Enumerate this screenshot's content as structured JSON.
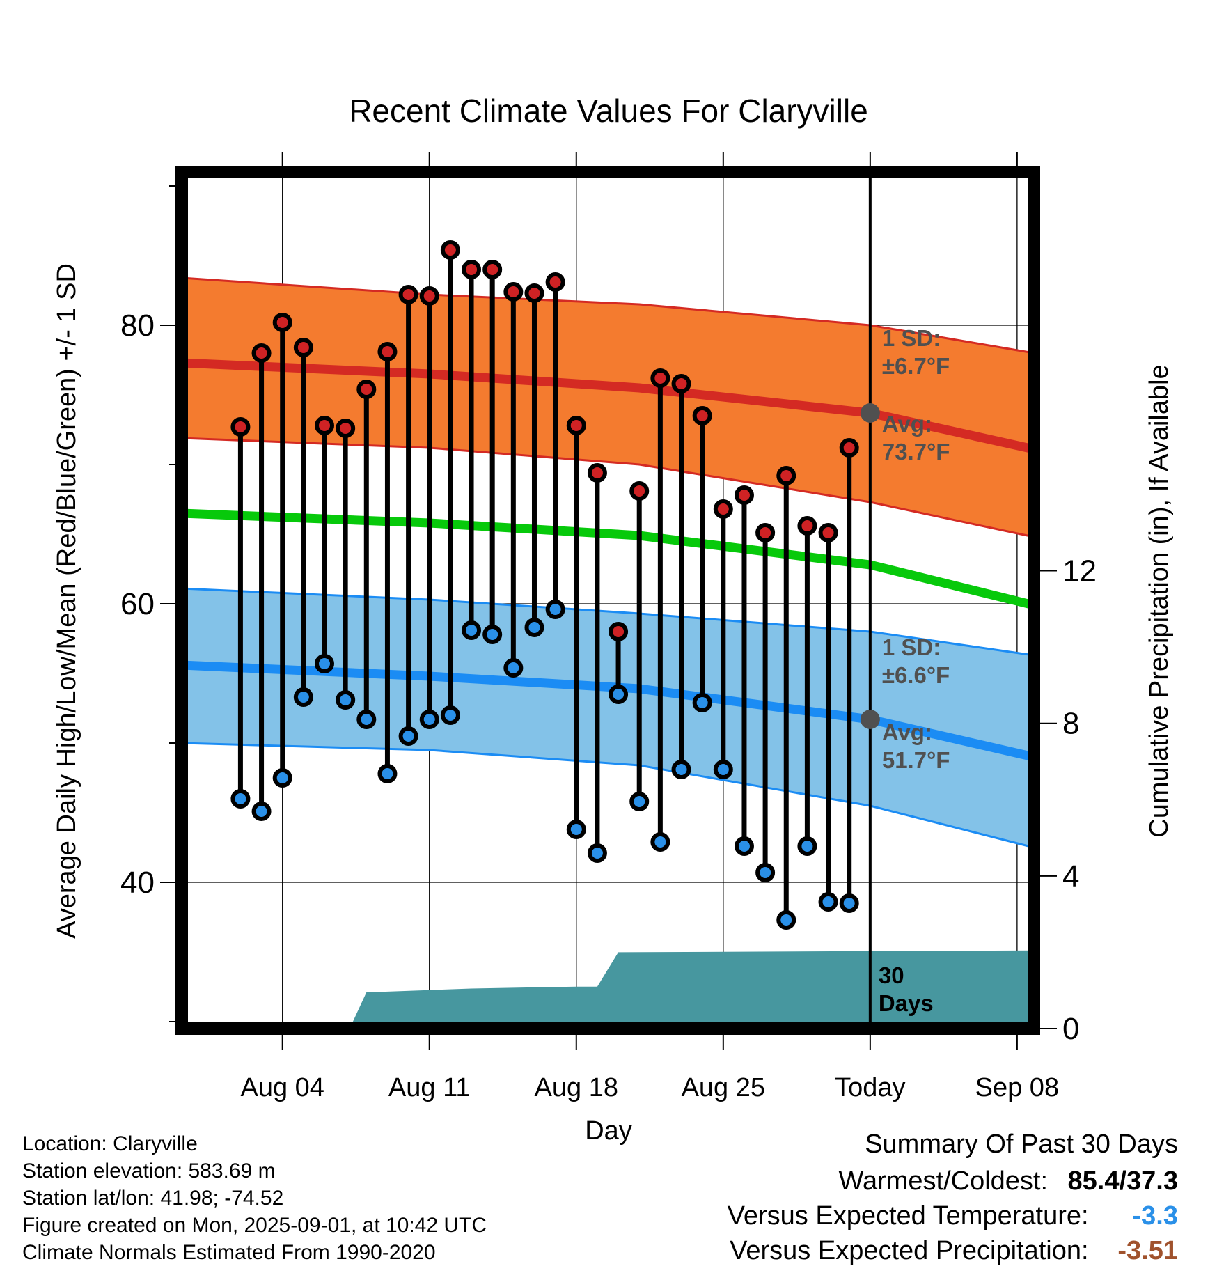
{
  "chart_data": {
    "type": "line",
    "title": "Recent Climate Values For Claryville",
    "xlabel": "Day",
    "ylabel": "Average Daily High/Low/Mean (Red/Blue/Green) +/- 1 SD",
    "y2label": "Cumulative Precipitation (in), If Available",
    "ylim": [
      29.5,
      91
    ],
    "y2lim": [
      0,
      22.45
    ],
    "xlim": [
      -1.8,
      38.8
    ],
    "x_tick_labels": [
      "Aug 04",
      "Aug 11",
      "Aug 18",
      "Aug 25",
      "Today",
      "Sep 08"
    ],
    "x_tick_positions": [
      3,
      10,
      17,
      24,
      31,
      38
    ],
    "y_ticks": [
      40,
      60,
      80
    ],
    "y2_ticks": [
      0,
      4,
      8,
      12
    ],
    "grid": true,
    "days": [
      1,
      2,
      3,
      4,
      5,
      6,
      7,
      8,
      9,
      10,
      11,
      12,
      13,
      14,
      15,
      16,
      17,
      18,
      19,
      20,
      21,
      22,
      23,
      24,
      25,
      26,
      27,
      28,
      29,
      30
    ],
    "daily_high": [
      72.7,
      78.0,
      80.2,
      78.4,
      72.8,
      72.6,
      75.4,
      78.1,
      82.2,
      82.1,
      85.4,
      84.0,
      84.0,
      82.4,
      82.3,
      83.1,
      72.8,
      69.4,
      58.0,
      68.1,
      76.2,
      75.8,
      73.5,
      66.8,
      67.8,
      65.1,
      69.2,
      65.6,
      65.1,
      71.2
    ],
    "daily_low": [
      46.0,
      45.1,
      47.5,
      53.3,
      55.7,
      53.1,
      51.7,
      47.8,
      50.5,
      51.7,
      52.0,
      58.1,
      57.8,
      55.4,
      58.3,
      59.6,
      43.8,
      42.1,
      53.5,
      45.8,
      42.9,
      48.1,
      52.9,
      48.1,
      42.6,
      40.7,
      37.3,
      42.6,
      38.6,
      38.5
    ],
    "normal_high": {
      "x": [
        -1.8,
        10,
        20,
        31,
        38.8
      ],
      "values": [
        77.3,
        76.5,
        75.5,
        73.7,
        71.1
      ]
    },
    "normal_high_sd": {
      "x": [
        -1.8,
        10,
        20,
        31,
        38.8
      ],
      "upper": [
        83.4,
        82.2,
        81.5,
        80.0,
        78.0
      ],
      "lower": [
        71.9,
        71.2,
        70.0,
        67.3,
        64.8
      ]
    },
    "normal_mean": {
      "x": [
        -1.8,
        10,
        20,
        31,
        38.8
      ],
      "values": [
        66.5,
        65.8,
        64.9,
        62.8,
        59.9
      ]
    },
    "normal_low": {
      "x": [
        -1.8,
        10,
        20,
        31,
        38.8
      ],
      "values": [
        55.6,
        54.8,
        53.9,
        51.7,
        49.0
      ]
    },
    "normal_low_sd": {
      "x": [
        -1.8,
        10,
        20,
        31,
        38.8
      ],
      "upper": [
        61.1,
        60.3,
        59.3,
        58.0,
        56.3
      ],
      "lower": [
        50.0,
        49.5,
        48.4,
        45.5,
        42.5
      ]
    },
    "precip": {
      "x": [
        6.2,
        7.0,
        12.0,
        17.0,
        18.0,
        19.0,
        38.8
      ],
      "values": [
        0,
        0.95,
        1.05,
        1.1,
        1.1,
        2.0,
        2.05
      ]
    },
    "today_x": 31,
    "annotations": {
      "high_sd_label": [
        "1 SD:",
        "±6.7°F"
      ],
      "high_avg_label": [
        "Avg:",
        "73.7°F"
      ],
      "low_sd_label": [
        "1 SD:",
        "±6.6°F"
      ],
      "low_avg_label": [
        "Avg:",
        "51.7°F"
      ],
      "days_label": [
        "30",
        "Days"
      ]
    },
    "colors": {
      "high_band": "#f47b2f",
      "high_line": "#d42a23",
      "mean_line": "#07c90b",
      "low_band": "#83c2e8",
      "low_line": "#1b8cf4",
      "precip": "#47979f",
      "high_dot": "#cf2224",
      "low_dot": "#2a90e8",
      "annotation": "#505050"
    }
  },
  "footer": {
    "location": "Location: Claryville",
    "elevation": "Station elevation: 583.69 m",
    "latlon": "Station lat/lon: 41.98; -74.52",
    "created": "Figure created on Mon, 2025-09-01, at 10:42 UTC",
    "normals": "Climate Normals Estimated From 1990-2020"
  },
  "summary": {
    "heading": "Summary Of Past 30 Days",
    "warmest_label": "Warmest/Coldest:",
    "warmest_value": "85.4/37.3",
    "temp_label": "Versus Expected Temperature:",
    "temp_value": "-3.3",
    "temp_color": "#2a90e8",
    "precip_label": "Versus Expected Precipitation:",
    "precip_value": "-3.51",
    "precip_color": "#a0522d"
  }
}
